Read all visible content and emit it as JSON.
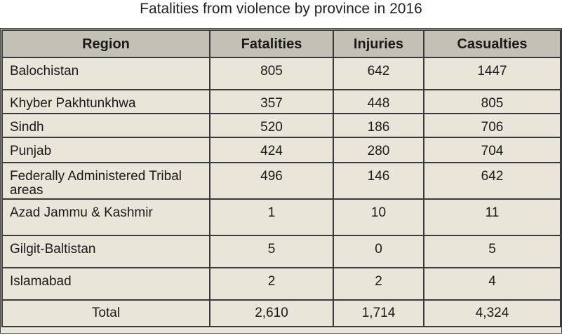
{
  "caption": "Fatalities from violence by province in 2016",
  "headers": {
    "region": "Region",
    "fatalities": "Fatalities",
    "injuries": "Injuries",
    "casualties": "Casualties"
  },
  "rows": [
    {
      "region": "Balochistan",
      "fatalities": "805",
      "injuries": "642",
      "casualties": "1447"
    },
    {
      "region": "Khyber Pakhtunkhwa",
      "fatalities": "357",
      "injuries": "448",
      "casualties": "805"
    },
    {
      "region": "Sindh",
      "fatalities": "520",
      "injuries": "186",
      "casualties": "706"
    },
    {
      "region": "Punjab",
      "fatalities": "424",
      "injuries": "280",
      "casualties": "704"
    },
    {
      "region": "Federally Administered Tribal areas",
      "fatalities": "496",
      "injuries": "146",
      "casualties": "642"
    },
    {
      "region": "Azad Jammu & Kashmir",
      "fatalities": "1",
      "injuries": "10",
      "casualties": "11"
    },
    {
      "region": "Gilgit-Baltistan",
      "fatalities": "5",
      "injuries": "0",
      "casualties": "5"
    },
    {
      "region": "Islamabad",
      "fatalities": "2",
      "injuries": "2",
      "casualties": "4"
    }
  ],
  "total": {
    "label": "Total",
    "fatalities": "2,610",
    "injuries": "1,714",
    "casualties": "4,324"
  }
}
